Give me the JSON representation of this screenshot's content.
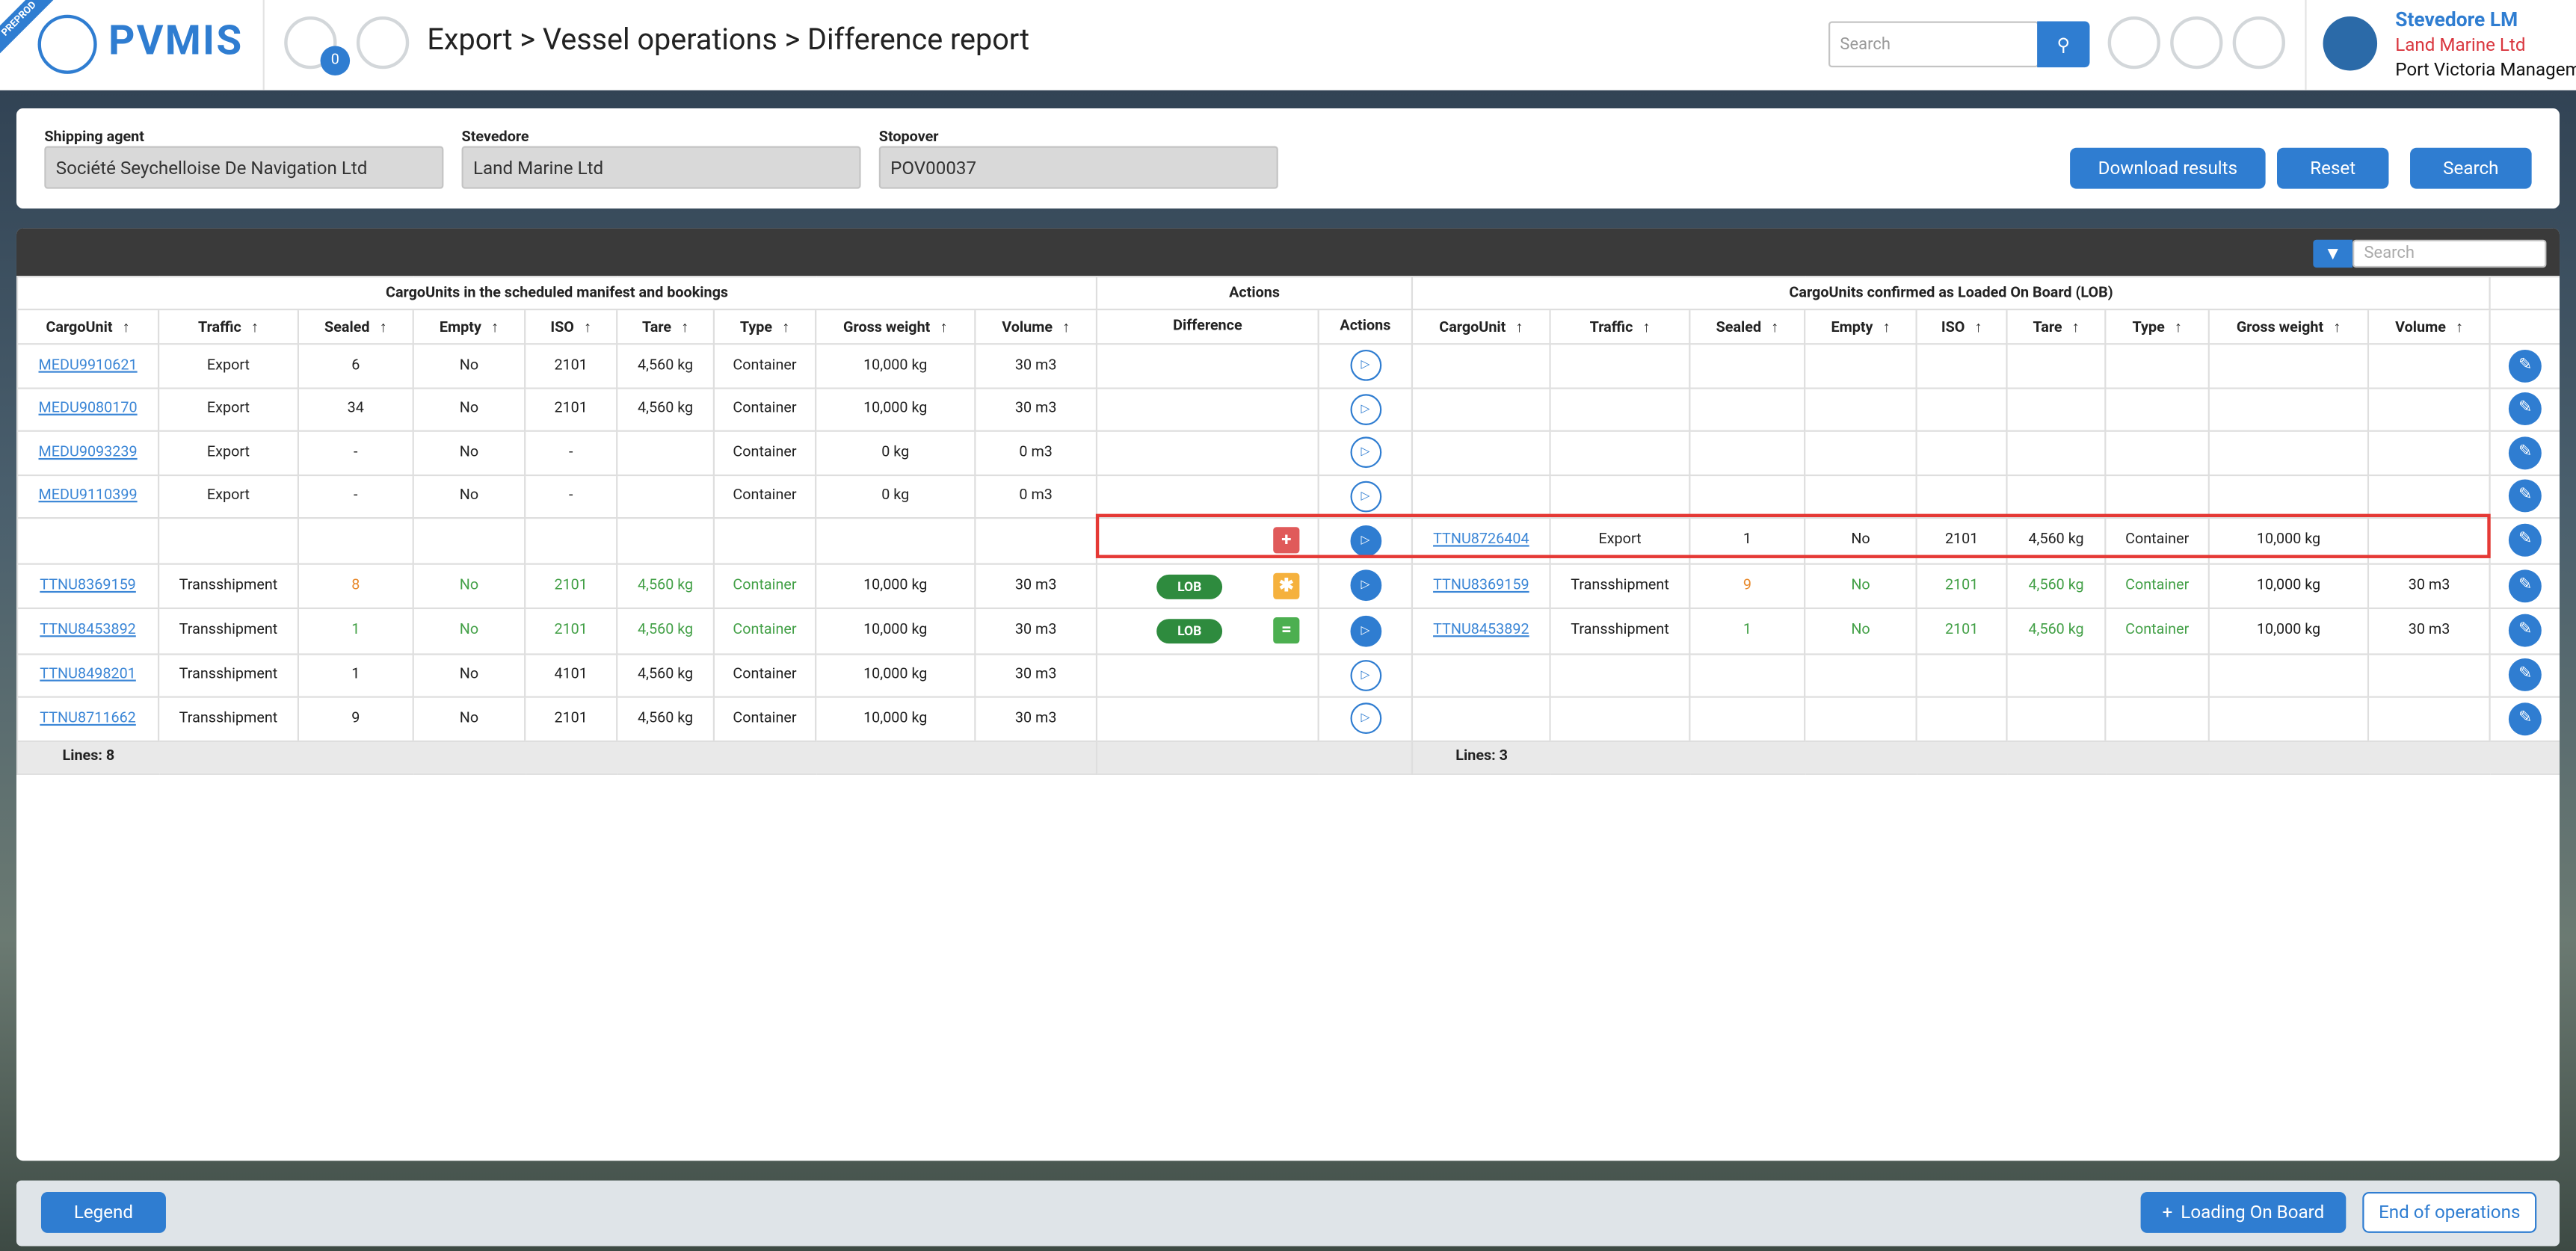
{
  "header": {
    "badge": "PREPROD",
    "logo": "PVMIS",
    "notifications": "0",
    "breadcrumb": "Export > Vessel operations > Difference report",
    "search_placeholder": "Search",
    "user": {
      "name": "Stevedore LM",
      "company": "Land Marine Ltd",
      "org": "Port Victoria Managem"
    }
  },
  "filters": [
    {
      "label": "Shipping agent",
      "value": "Société Seychelloise De Navigation Ltd"
    },
    {
      "label": "Stevedore",
      "value": "Land Marine Ltd"
    },
    {
      "label": "Stopover",
      "value": "POV00037"
    }
  ],
  "buttons": {
    "download": "Download results",
    "reset": "Reset",
    "search": "Search"
  },
  "table": {
    "search_placeholder": "Search",
    "group_left": "CargoUnits in the scheduled manifest and bookings",
    "group_actions": "Actions",
    "group_right": "CargoUnits confirmed as Loaded On Board (LOB)",
    "columns_left": [
      "CargoUnit",
      "Traffic",
      "Sealed",
      "Empty",
      "ISO",
      "Tare",
      "Type",
      "Gross weight",
      "Volume"
    ],
    "columns_actions": [
      "Difference",
      "Actions"
    ],
    "columns_right": [
      "CargoUnit",
      "Traffic",
      "Sealed",
      "Empty",
      "ISO",
      "Tare",
      "Type",
      "Gross weight",
      "Volume"
    ],
    "rows": [
      {
        "left": [
          "MEDU9910621",
          "Export",
          "6",
          "No",
          "2101",
          "4,560 kg",
          "Container",
          "10,000 kg",
          "30 m3"
        ],
        "lob": null,
        "diff": null,
        "right": null
      },
      {
        "left": [
          "MEDU9080170",
          "Export",
          "34",
          "No",
          "2101",
          "4,560 kg",
          "Container",
          "10,000 kg",
          "30 m3"
        ],
        "lob": null,
        "diff": null,
        "right": null
      },
      {
        "left": [
          "MEDU9093239",
          "Export",
          "-",
          "No",
          "-",
          null,
          "Container",
          "0 kg",
          "0 m3"
        ],
        "lob": null,
        "diff": null,
        "right": null
      },
      {
        "left": [
          "MEDU9110399",
          "Export",
          "-",
          "No",
          "-",
          null,
          "Container",
          "0 kg",
          "0 m3"
        ],
        "lob": null,
        "diff": null,
        "right": null
      },
      {
        "left": null,
        "lob": null,
        "diff": {
          "symbol": "+",
          "color": "#e05a5a"
        },
        "highlighted": true,
        "right": [
          "TTNU8726404",
          "Export",
          "1",
          "No",
          "2101",
          "4,560 kg",
          "Container",
          "10,000 kg",
          null
        ]
      },
      {
        "left": [
          "TTNU8369159",
          "Transshipment",
          "8",
          "No",
          "2101",
          "4,560 kg",
          "Container",
          "10,000 kg",
          "30 m3"
        ],
        "lob": "LOB",
        "diff": {
          "symbol": "✱",
          "color": "#f5b13d"
        },
        "right": [
          "TTNU8369159",
          "Transshipment",
          "9",
          "No",
          "2101",
          "4,560 kg",
          "Container",
          "10,000 kg",
          "30 m3"
        ],
        "cell_colors": [
          null,
          null,
          "#e8892b",
          "#43a047",
          "#43a047",
          "#43a047",
          "#43a047",
          null,
          null
        ]
      },
      {
        "left": [
          "TTNU8453892",
          "Transshipment",
          "1",
          "No",
          "2101",
          "4,560 kg",
          "Container",
          "10,000 kg",
          "30 m3"
        ],
        "lob": "LOB",
        "diff": {
          "symbol": "=",
          "color": "#4caf50"
        },
        "right": [
          "TTNU8453892",
          "Transshipment",
          "1",
          "No",
          "2101",
          "4,560 kg",
          "Container",
          "10,000 kg",
          "30 m3"
        ],
        "cell_colors": [
          null,
          null,
          "#43a047",
          "#43a047",
          "#43a047",
          "#43a047",
          "#43a047",
          null,
          null
        ]
      },
      {
        "left": [
          "TTNU8498201",
          "Transshipment",
          "1",
          "No",
          "4101",
          "4,560 kg",
          "Container",
          "10,000 kg",
          "30 m3"
        ],
        "lob": null,
        "diff": null,
        "right": null
      },
      {
        "left": [
          "TTNU8711662",
          "Transshipment",
          "9",
          "No",
          "2101",
          "4,560 kg",
          "Container",
          "10,000 kg",
          "30 m3"
        ],
        "lob": null,
        "diff": null,
        "right": null
      }
    ],
    "lines_left": "Lines: 8",
    "lines_right": "Lines: 3"
  },
  "footer": {
    "legend": "Legend",
    "loading": "Loading On Board",
    "end": "End of operations"
  }
}
